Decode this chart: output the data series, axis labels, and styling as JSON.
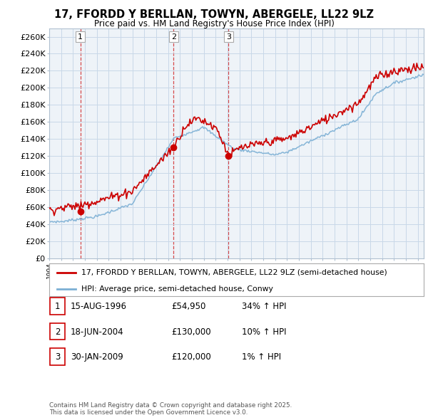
{
  "title": "17, FFORDD Y BERLLAN, TOWYN, ABERGELE, LL22 9LZ",
  "subtitle": "Price paid vs. HM Land Registry's House Price Index (HPI)",
  "ylabel_ticks": [
    "£0",
    "£20K",
    "£40K",
    "£60K",
    "£80K",
    "£100K",
    "£120K",
    "£140K",
    "£160K",
    "£180K",
    "£200K",
    "£220K",
    "£240K",
    "£260K"
  ],
  "ytick_values": [
    0,
    20000,
    40000,
    60000,
    80000,
    100000,
    120000,
    140000,
    160000,
    180000,
    200000,
    220000,
    240000,
    260000
  ],
  "ylim": [
    0,
    270000
  ],
  "sale_dates": [
    1996.62,
    2004.46,
    2009.08
  ],
  "sale_prices": [
    54950,
    130000,
    120000
  ],
  "sale_labels": [
    "1",
    "2",
    "3"
  ],
  "red_line_color": "#cc0000",
  "blue_line_color": "#7bafd4",
  "legend_entries": [
    "17, FFORDD Y BERLLAN, TOWYN, ABERGELE, LL22 9LZ (semi-detached house)",
    "HPI: Average price, semi-detached house, Conwy"
  ],
  "table_entries": [
    {
      "label": "1",
      "date": "15-AUG-1996",
      "price": "£54,950",
      "hpi": "34% ↑ HPI"
    },
    {
      "label": "2",
      "date": "18-JUN-2004",
      "price": "£130,000",
      "hpi": "10% ↑ HPI"
    },
    {
      "label": "3",
      "date": "30-JAN-2009",
      "price": "£120,000",
      "hpi": "1% ↑ HPI"
    }
  ],
  "footer": "Contains HM Land Registry data © Crown copyright and database right 2025.\nThis data is licensed under the Open Government Licence v3.0.",
  "background_color": "#ffffff",
  "plot_bg_color": "#eef3f8",
  "grid_color": "#c8d8e8",
  "xmin": 1994,
  "xmax": 2025.5
}
